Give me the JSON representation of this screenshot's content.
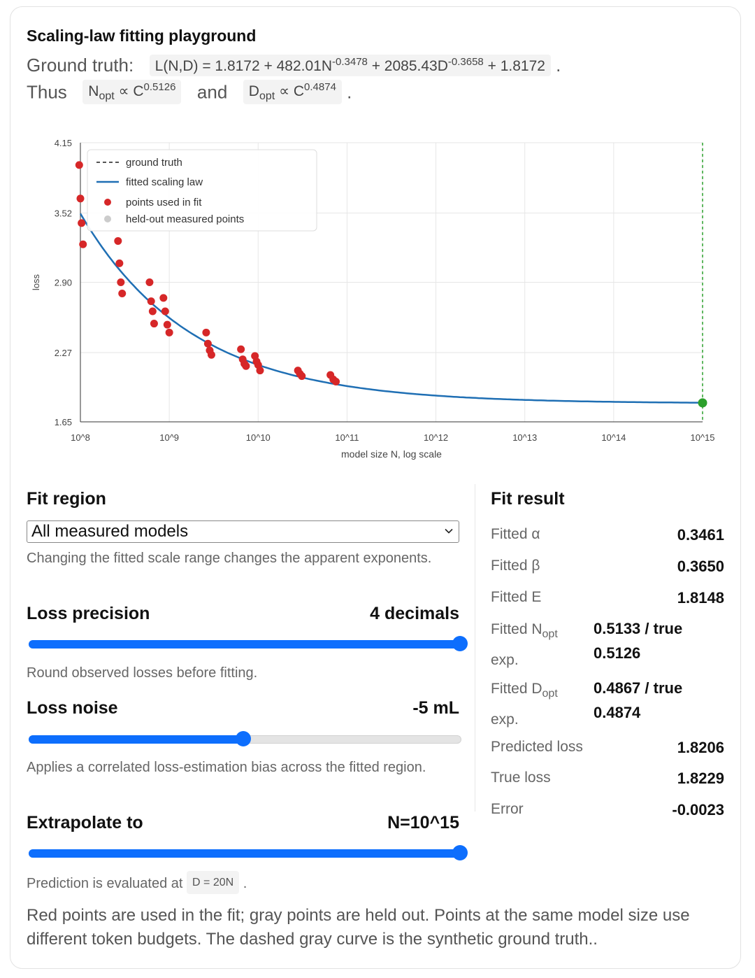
{
  "title": "Scaling-law fitting playground",
  "ground_truth": {
    "label": "Ground truth:",
    "eq_prefix": "L(N,D) = 1.8172 + 482.01N",
    "eq_exp1": "-0.3478",
    "eq_mid": " + 2085.43D",
    "eq_exp2": "-0.3658",
    "eq_suffix": " + 1.8172",
    "period": "."
  },
  "thus": {
    "label": "Thus",
    "nopt_base": "N",
    "nopt_sub": "opt",
    "nopt_mid": " ∝ C",
    "nopt_exp": "0.5126",
    "and": "and",
    "dopt_base": "D",
    "dopt_sub": "opt",
    "dopt_mid": " ∝ C",
    "dopt_exp": "0.4874",
    "period": "."
  },
  "chart_data": {
    "type": "scatter",
    "xlabel": "model size N, log scale",
    "ylabel": "loss",
    "x_scale": "log",
    "xlim": [
      100000000.0,
      1000000000000000.0
    ],
    "ylim": [
      1.65,
      4.15
    ],
    "x_ticks": [
      "10^8",
      "10^9",
      "10^10",
      "10^11",
      "10^12",
      "10^13",
      "10^14",
      "10^15"
    ],
    "y_ticks": [
      "1.65",
      "2.27",
      "2.90",
      "3.52",
      "4.15"
    ],
    "grid": true,
    "legend_position": "top-left",
    "legend": [
      "ground truth",
      "fitted scaling law",
      "points used in fit",
      "held-out measured points"
    ],
    "colors": {
      "fitted": "#1f6fb4",
      "ground_truth": "#555555",
      "fit_points": "#d62728",
      "held_out": "#cccccc",
      "extrapolated": "#2ca02c"
    },
    "fitted_curve": {
      "E": 1.8148,
      "A": 1.7,
      "alpha": 0.3461,
      "x0": 100000000.0,
      "formula": "E + A*(N/1e8)^-alpha"
    },
    "points_used_in_fit": [
      {
        "x": 97000000.0,
        "y": 3.95
      },
      {
        "x": 100000000.0,
        "y": 3.65
      },
      {
        "x": 103000000.0,
        "y": 3.43
      },
      {
        "x": 107000000.0,
        "y": 3.24
      },
      {
        "x": 265000000.0,
        "y": 3.27
      },
      {
        "x": 275000000.0,
        "y": 3.07
      },
      {
        "x": 285000000.0,
        "y": 2.9
      },
      {
        "x": 295000000.0,
        "y": 2.8
      },
      {
        "x": 600000000.0,
        "y": 2.9
      },
      {
        "x": 625000000.0,
        "y": 2.73
      },
      {
        "x": 650000000.0,
        "y": 2.64
      },
      {
        "x": 675000000.0,
        "y": 2.53
      },
      {
        "x": 860000000.0,
        "y": 2.76
      },
      {
        "x": 900000000.0,
        "y": 2.64
      },
      {
        "x": 950000000.0,
        "y": 2.52
      },
      {
        "x": 1000000000.0,
        "y": 2.45
      },
      {
        "x": 2600000000.0,
        "y": 2.45
      },
      {
        "x": 2720000000.0,
        "y": 2.35
      },
      {
        "x": 2850000000.0,
        "y": 2.29
      },
      {
        "x": 2980000000.0,
        "y": 2.25
      },
      {
        "x": 6400000000.0,
        "y": 2.3
      },
      {
        "x": 6700000000.0,
        "y": 2.21
      },
      {
        "x": 7000000000.0,
        "y": 2.17
      },
      {
        "x": 7300000000.0,
        "y": 2.15
      },
      {
        "x": 9200000000.0,
        "y": 2.24
      },
      {
        "x": 9600000000.0,
        "y": 2.19
      },
      {
        "x": 10000000000.0,
        "y": 2.16
      },
      {
        "x": 10500000000.0,
        "y": 2.11
      },
      {
        "x": 28000000000.0,
        "y": 2.11
      },
      {
        "x": 29500000000.0,
        "y": 2.08
      },
      {
        "x": 31000000000.0,
        "y": 2.06
      },
      {
        "x": 65000000000.0,
        "y": 2.07
      },
      {
        "x": 70000000000.0,
        "y": 2.03
      },
      {
        "x": 75000000000.0,
        "y": 2.01
      }
    ],
    "extrapolated_point": {
      "x": 1000000000000000.0,
      "y": 1.82
    }
  },
  "fit_region": {
    "title": "Fit region",
    "selected": "All measured models",
    "help": "Changing the fitted scale range changes the apparent exponents."
  },
  "loss_precision": {
    "title": "Loss precision",
    "value": "4 decimals",
    "level": 1.0,
    "help": "Round observed losses before fitting."
  },
  "loss_noise": {
    "title": "Loss noise",
    "value": "-5 mL",
    "level": 0.49,
    "help": "Applies a correlated loss-estimation bias across the fitted region."
  },
  "extrapolate": {
    "title": "Extrapolate to",
    "value": "N=10^15",
    "level": 1.0,
    "help_prefix": "Prediction is evaluated at",
    "help_chip": "D = 20N",
    "help_suffix": "."
  },
  "fit_result": {
    "title": "Fit result",
    "alpha_label": "Fitted α",
    "alpha_value": "0.3461",
    "beta_label": "Fitted β",
    "beta_value": "0.3650",
    "e_label": "Fitted E",
    "e_value": "1.8148",
    "nopt_label_prefix": "Fitted N",
    "nopt_label_sub": "opt",
    "nopt_label_suffix": "exp.",
    "nopt_value_line1": "0.5133 / true",
    "nopt_value_line2": "0.5126",
    "dopt_label_prefix": "Fitted D",
    "dopt_label_sub": "opt",
    "dopt_label_suffix": "exp.",
    "dopt_value_line1": "0.4867 / true",
    "dopt_value_line2": "0.4874",
    "pred_label": "Predicted loss",
    "pred_value": "1.8206",
    "true_label": "True loss",
    "true_value": "1.8229",
    "error_label": "Error",
    "error_value": "-0.0023"
  },
  "footer": "Red points are used in the fit; gray points are held out. Points at the same model size use different token budgets. The dashed gray curve is the synthetic ground truth.."
}
